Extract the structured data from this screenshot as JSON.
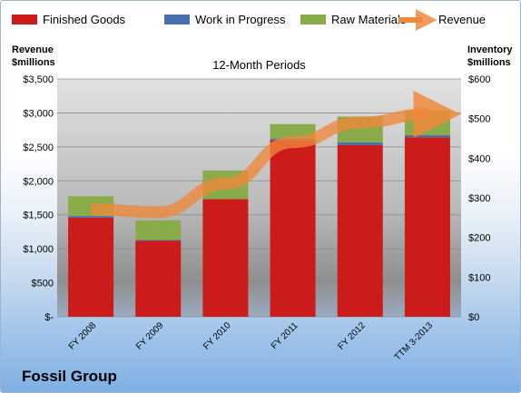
{
  "chart_data": {
    "type": "bar",
    "stacked": true,
    "title": "12-Month Periods",
    "left_axis": {
      "label_line1": "Revenue",
      "label_line2": "$millions",
      "ylim": [
        0,
        3500
      ],
      "ticks": [
        "$-",
        "$500",
        "$1,000",
        "$1,500",
        "$2,000",
        "$2,500",
        "$3,000",
        "$3,500"
      ]
    },
    "right_axis": {
      "label_line1": "Inventory",
      "label_line2": "$millions",
      "ylim": [
        0,
        600
      ],
      "ticks": [
        "$0",
        "$100",
        "$200",
        "$300",
        "$400",
        "$500",
        "$600"
      ]
    },
    "categories": [
      "FY 2008",
      "FY 2009",
      "FY 2010",
      "FY 2011",
      "FY 2012",
      "TTM 3-2013"
    ],
    "series": [
      {
        "name": "Finished Goods",
        "axis": "right",
        "color": "#cc1b1b",
        "values": [
          250,
          192,
          297,
          445,
          433,
          453
        ]
      },
      {
        "name": "Work in Progress",
        "axis": "right",
        "color": "#4a6fb0",
        "values": [
          4,
          2,
          0,
          4,
          7,
          5
        ]
      },
      {
        "name": "Raw Materials",
        "axis": "right",
        "color": "#8aab4a",
        "values": [
          50,
          49,
          72,
          37,
          65,
          62
        ]
      },
      {
        "name": "Revenue",
        "axis": "left",
        "color": "#f0883a",
        "type": "line-arrow",
        "values": [
          1580,
          1540,
          1960,
          2570,
          2860,
          2980
        ]
      }
    ],
    "legend_position": "top"
  },
  "footer": {
    "company": "Fossil Group"
  }
}
